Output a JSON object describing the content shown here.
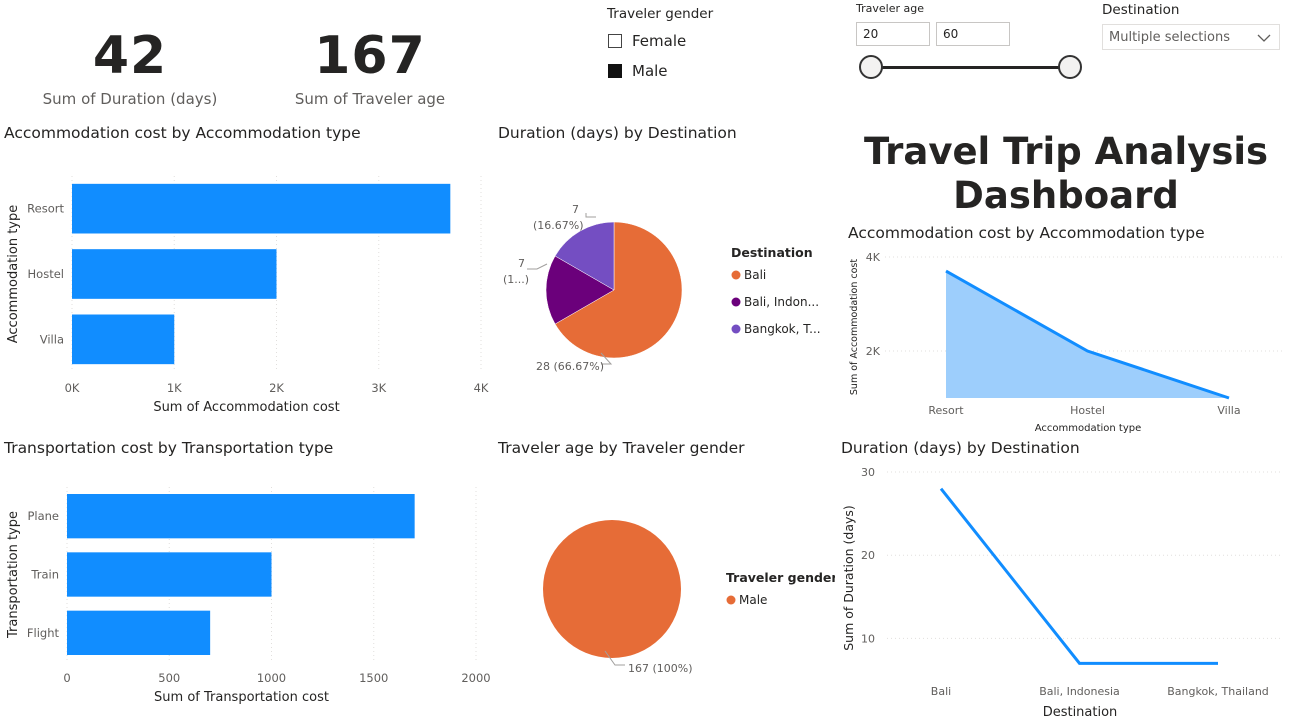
{
  "kpis": [
    {
      "value": "42",
      "label": "Sum of Duration (days)"
    },
    {
      "value": "167",
      "label": "Sum of Traveler age"
    }
  ],
  "slicers": {
    "gender": {
      "title": "Traveler gender",
      "options": [
        {
          "label": "Female",
          "checked": false
        },
        {
          "label": "Male",
          "checked": true
        }
      ]
    },
    "age": {
      "title": "Traveler age",
      "min": "20",
      "max": "60",
      "range_min": 20,
      "range_max": 60,
      "selected_min": 20,
      "selected_max": 60
    },
    "destination": {
      "title": "Destination",
      "value": "Multiple selections",
      "icon": "chevron-down-icon"
    }
  },
  "dashboard_title": {
    "line1": "Travel Trip Analysis",
    "line2": "Dashboard"
  },
  "colors": {
    "bar": "#118dff",
    "area_fill": "#9dcefc",
    "pie_orange": "#e66c37",
    "pie_purple": "#6b007b",
    "pie_violet": "#744ec2",
    "text": "#252423",
    "subtext": "#605e5c"
  },
  "chart_data": [
    {
      "id": "accom_bar",
      "type": "bar",
      "orientation": "horizontal",
      "title": "Accommodation cost by Accommodation type",
      "xlabel": "Sum of Accommodation cost",
      "ylabel": "Accommodation type",
      "categories": [
        "Resort",
        "Hostel",
        "Villa"
      ],
      "values": [
        3700,
        2000,
        1000
      ],
      "xlim": [
        0,
        4000
      ],
      "xticks": [
        "0K",
        "1K",
        "2K",
        "3K",
        "4K"
      ],
      "grid": true
    },
    {
      "id": "duration_pie",
      "type": "pie",
      "title": "Duration (days) by Destination",
      "legend_title": "Destination",
      "legend_position": "right",
      "slices": [
        {
          "label": "Bali",
          "legend": "Bali",
          "value": 28,
          "data_label": "28 (66.67%)",
          "color": "#e66c37"
        },
        {
          "label": "Bali, Indonesia",
          "legend": "Bali, Indon...",
          "value": 7,
          "data_label_line1": "7",
          "data_label_line2": "(1...)",
          "color": "#6b007b"
        },
        {
          "label": "Bangkok, Thailand",
          "legend": "Bangkok, T...",
          "value": 7,
          "data_label_line1": "7",
          "data_label_line2": "(16.67%)",
          "color": "#744ec2"
        }
      ]
    },
    {
      "id": "accom_area",
      "type": "area",
      "title": "Accommodation cost by Accommodation type",
      "xlabel": "Accommodation type",
      "ylabel": "Sum of Accommodation cost",
      "categories": [
        "Resort",
        "Hostel",
        "Villa"
      ],
      "values": [
        3700,
        2000,
        1000
      ],
      "ylim": [
        1000,
        4000
      ],
      "yticks": [
        "4K",
        "2K"
      ],
      "grid": true
    },
    {
      "id": "transport_bar",
      "type": "bar",
      "orientation": "horizontal",
      "title": "Transportation cost by Transportation type",
      "xlabel": "Sum of Transportation cost",
      "ylabel": "Transportation type",
      "categories": [
        "Plane",
        "Train",
        "Flight"
      ],
      "values": [
        1700,
        1000,
        700
      ],
      "xlim": [
        0,
        2000
      ],
      "xticks": [
        "0",
        "500",
        "1000",
        "1500",
        "2000"
      ],
      "grid": true
    },
    {
      "id": "gender_pie",
      "type": "pie",
      "title": "Traveler age by Traveler gender",
      "legend_title": "Traveler gender",
      "legend_position": "right",
      "slices": [
        {
          "label": "Male",
          "legend": "Male",
          "value": 167,
          "data_label": "167 (100%)",
          "color": "#e66c37"
        }
      ]
    },
    {
      "id": "duration_line",
      "type": "line",
      "title": "Duration (days) by Destination",
      "xlabel": "Destination",
      "ylabel": "Sum of Duration (days)",
      "categories": [
        "Bali",
        "Bali, Indonesia",
        "Bangkok, Thailand"
      ],
      "values": [
        28,
        7,
        7
      ],
      "ylim": [
        5,
        30
      ],
      "yticks": [
        "30",
        "20",
        "10"
      ],
      "grid": true
    }
  ]
}
